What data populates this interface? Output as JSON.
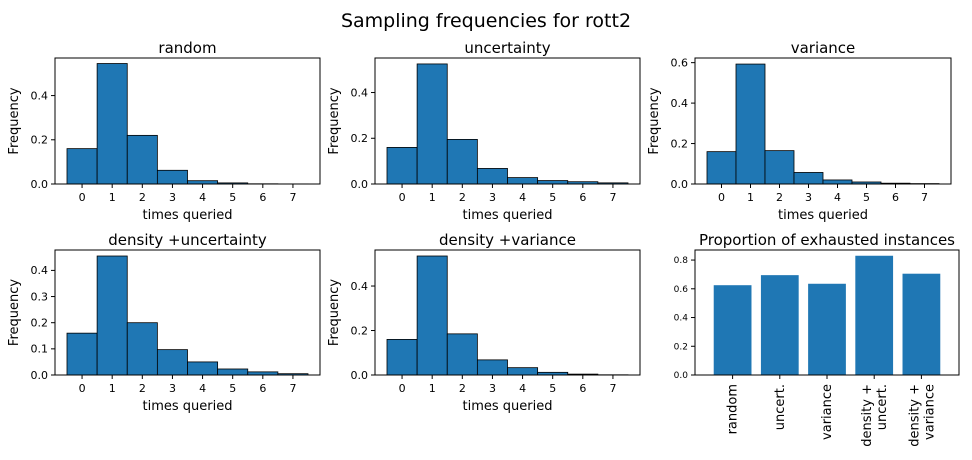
{
  "figure": {
    "title": "Sampling frequencies for rott2"
  },
  "colors": {
    "bar": "#1f77b4",
    "edge": "#000000"
  },
  "chart_data": [
    {
      "type": "bar",
      "title": "random",
      "xlabel": "times queried",
      "ylabel": "Frequency",
      "categories": [
        "0",
        "1",
        "2",
        "3",
        "4",
        "5",
        "6",
        "7"
      ],
      "values": [
        0.16,
        0.545,
        0.22,
        0.062,
        0.015,
        0.005,
        0.001,
        0.0005
      ],
      "ylim": [
        0,
        0.57
      ],
      "yticks": [
        "0.0",
        "0.2",
        "0.4"
      ],
      "grid": false
    },
    {
      "type": "bar",
      "title": "uncertainty",
      "xlabel": "times queried",
      "ylabel": "Frequency",
      "categories": [
        "0",
        "1",
        "2",
        "3",
        "4",
        "5",
        "6",
        "7"
      ],
      "values": [
        0.16,
        0.525,
        0.195,
        0.068,
        0.028,
        0.015,
        0.01,
        0.005
      ],
      "ylim": [
        0,
        0.551
      ],
      "yticks": [
        "0.0",
        "0.2",
        "0.4"
      ],
      "grid": false
    },
    {
      "type": "bar",
      "title": "variance",
      "xlabel": "times queried",
      "ylabel": "Frequency",
      "categories": [
        "0",
        "1",
        "2",
        "3",
        "4",
        "5",
        "6",
        "7"
      ],
      "values": [
        0.16,
        0.593,
        0.165,
        0.057,
        0.02,
        0.01,
        0.004,
        0.002
      ],
      "ylim": [
        0,
        0.623
      ],
      "yticks": [
        "0.0",
        "0.2",
        "0.4",
        "0.6"
      ],
      "grid": false
    },
    {
      "type": "bar",
      "title": "density +uncertainty",
      "xlabel": "times queried",
      "ylabel": "Frequency",
      "categories": [
        "0",
        "1",
        "2",
        "3",
        "4",
        "5",
        "6",
        "7"
      ],
      "values": [
        0.16,
        0.455,
        0.2,
        0.097,
        0.05,
        0.023,
        0.012,
        0.005
      ],
      "ylim": [
        0,
        0.478
      ],
      "yticks": [
        "0.0",
        "0.1",
        "0.2",
        "0.3",
        "0.4"
      ],
      "grid": false
    },
    {
      "type": "bar",
      "title": "density +variance",
      "xlabel": "times queried",
      "ylabel": "Frequency",
      "categories": [
        "0",
        "1",
        "2",
        "3",
        "4",
        "5",
        "6",
        "7"
      ],
      "values": [
        0.16,
        0.535,
        0.185,
        0.068,
        0.033,
        0.012,
        0.004,
        0.001
      ],
      "ylim": [
        0,
        0.562
      ],
      "yticks": [
        "0.0",
        "0.2",
        "0.4"
      ],
      "grid": false
    },
    {
      "type": "bar",
      "title": "Proportion of exhausted instances",
      "xlabel": "",
      "ylabel": "",
      "categories": [
        "random",
        "uncert.",
        "variance",
        "density +\nuncert.",
        "density +\nvariance"
      ],
      "values": [
        0.625,
        0.695,
        0.635,
        0.83,
        0.705
      ],
      "ylim": [
        0,
        0.87
      ],
      "yticks": [
        "0.0",
        "0.2",
        "0.4",
        "0.6",
        "0.8"
      ],
      "grid": false
    }
  ]
}
